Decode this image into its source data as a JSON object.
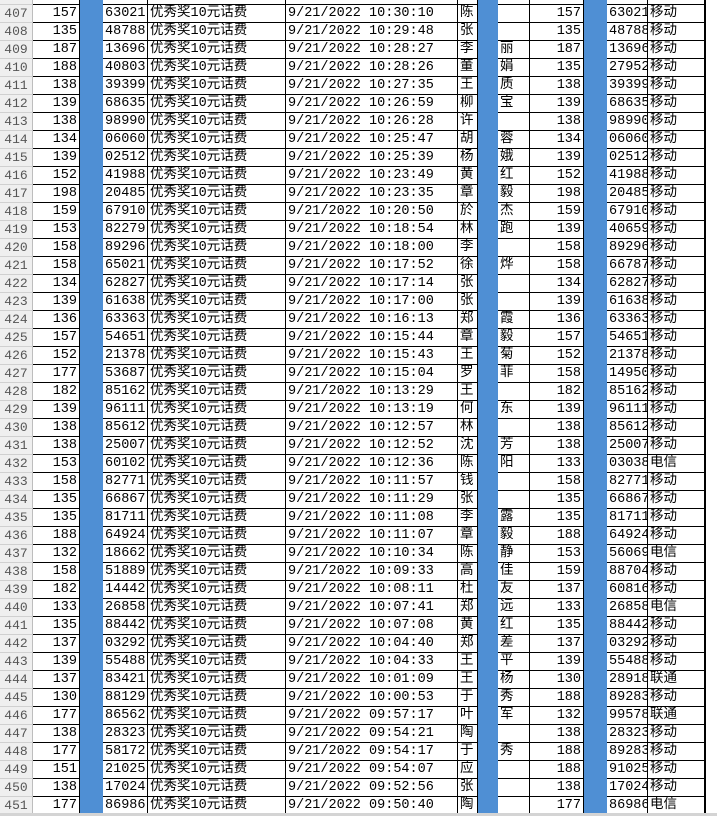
{
  "sheet": {
    "accent_redaction_color": "#4f8fd4",
    "rows": [
      [
        "407",
        "157",
        "63021",
        "优秀奖10元话费",
        "9/21/2022 10:30:10",
        "陈",
        "",
        "157",
        "63021",
        "移动"
      ],
      [
        "408",
        "135",
        "48788",
        "优秀奖10元话费",
        "9/21/2022 10:29:48",
        "张",
        "",
        "135",
        "48788",
        "移动"
      ],
      [
        "409",
        "187",
        "13696",
        "优秀奖10元话费",
        "9/21/2022 10:28:27",
        "李",
        "丽",
        "187",
        "13696",
        "移动"
      ],
      [
        "410",
        "188",
        "40803",
        "优秀奖10元话费",
        "9/21/2022 10:28:26",
        "董",
        "娟",
        "135",
        "27952",
        "移动"
      ],
      [
        "411",
        "138",
        "39399",
        "优秀奖10元话费",
        "9/21/2022 10:27:35",
        "王",
        "质",
        "138",
        "39399",
        "移动"
      ],
      [
        "412",
        "139",
        "68635",
        "优秀奖10元话费",
        "9/21/2022 10:26:59",
        "柳",
        "宝",
        "139",
        "68635",
        "移动"
      ],
      [
        "413",
        "138",
        "98990",
        "优秀奖10元话费",
        "9/21/2022 10:26:28",
        "许",
        "",
        "138",
        "98990",
        "移动"
      ],
      [
        "414",
        "134",
        "06060",
        "优秀奖10元话费",
        "9/21/2022 10:25:47",
        "胡",
        "蓉",
        "134",
        "06060",
        "移动"
      ],
      [
        "415",
        "139",
        "02512",
        "优秀奖10元话费",
        "9/21/2022 10:25:39",
        "杨",
        "娥",
        "139",
        "02512",
        "移动"
      ],
      [
        "416",
        "152",
        "41988",
        "优秀奖10元话费",
        "9/21/2022 10:23:49",
        "黄",
        "红",
        "152",
        "41988",
        "移动"
      ],
      [
        "417",
        "198",
        "20485",
        "优秀奖10元话费",
        "9/21/2022 10:23:35",
        "章",
        "毅",
        "198",
        "20485",
        "移动"
      ],
      [
        "418",
        "159",
        "67910",
        "优秀奖10元话费",
        "9/21/2022 10:20:50",
        "於",
        "杰",
        "159",
        "67910",
        "移动"
      ],
      [
        "419",
        "153",
        "82279",
        "优秀奖10元话费",
        "9/21/2022 10:18:54",
        "林",
        "跑",
        "139",
        "40659",
        "移动"
      ],
      [
        "420",
        "158",
        "89296",
        "优秀奖10元话费",
        "9/21/2022 10:18:00",
        "李",
        "",
        "158",
        "89296",
        "移动"
      ],
      [
        "421",
        "158",
        "65021",
        "优秀奖10元话费",
        "9/21/2022 10:17:52",
        "徐",
        "烨",
        "158",
        "66787",
        "移动"
      ],
      [
        "422",
        "134",
        "62827",
        "优秀奖10元话费",
        "9/21/2022 10:17:14",
        "张",
        "",
        "134",
        "62827",
        "移动"
      ],
      [
        "423",
        "139",
        "61638",
        "优秀奖10元话费",
        "9/21/2022 10:17:00",
        "张",
        "",
        "139",
        "61638",
        "移动"
      ],
      [
        "424",
        "136",
        "63363",
        "优秀奖10元话费",
        "9/21/2022 10:16:13",
        "郑",
        "霞",
        "136",
        "63363",
        "移动"
      ],
      [
        "425",
        "157",
        "54651",
        "优秀奖10元话费",
        "9/21/2022 10:15:44",
        "章",
        "毅",
        "157",
        "54651",
        "移动"
      ],
      [
        "426",
        "152",
        "21378",
        "优秀奖10元话费",
        "9/21/2022 10:15:43",
        "王",
        "菊",
        "152",
        "21378",
        "移动"
      ],
      [
        "427",
        "177",
        "53687",
        "优秀奖10元话费",
        "9/21/2022 10:15:04",
        "罗",
        "菲",
        "158",
        "14950",
        "移动"
      ],
      [
        "428",
        "182",
        "85162",
        "优秀奖10元话费",
        "9/21/2022 10:13:29",
        "王",
        "",
        "182",
        "85162",
        "移动"
      ],
      [
        "429",
        "139",
        "96111",
        "优秀奖10元话费",
        "9/21/2022 10:13:19",
        "何",
        "东",
        "139",
        "96111",
        "移动"
      ],
      [
        "430",
        "138",
        "85612",
        "优秀奖10元话费",
        "9/21/2022 10:12:57",
        "林",
        "",
        "138",
        "85612",
        "移动"
      ],
      [
        "431",
        "138",
        "25007",
        "优秀奖10元话费",
        "9/21/2022 10:12:52",
        "沈",
        "芳",
        "138",
        "25007",
        "移动"
      ],
      [
        "432",
        "153",
        "60102",
        "优秀奖10元话费",
        "9/21/2022 10:12:36",
        "陈",
        "阳",
        "133",
        "03038",
        "电信"
      ],
      [
        "433",
        "158",
        "82771",
        "优秀奖10元话费",
        "9/21/2022 10:11:57",
        "钱",
        "",
        "158",
        "82771",
        "移动"
      ],
      [
        "434",
        "135",
        "66867",
        "优秀奖10元话费",
        "9/21/2022 10:11:29",
        "张",
        "",
        "135",
        "66867",
        "移动"
      ],
      [
        "435",
        "135",
        "81711",
        "优秀奖10元话费",
        "9/21/2022 10:11:08",
        "李",
        "露",
        "135",
        "81711",
        "移动"
      ],
      [
        "436",
        "188",
        "64924",
        "优秀奖10元话费",
        "9/21/2022 10:11:07",
        "章",
        "毅",
        "188",
        "64924",
        "移动"
      ],
      [
        "437",
        "132",
        "18662",
        "优秀奖10元话费",
        "9/21/2022 10:10:34",
        "陈",
        "静",
        "153",
        "56069",
        "电信"
      ],
      [
        "438",
        "158",
        "51889",
        "优秀奖10元话费",
        "9/21/2022 10:09:33",
        "高",
        "佳",
        "159",
        "88704",
        "移动"
      ],
      [
        "439",
        "182",
        "14442",
        "优秀奖10元话费",
        "9/21/2022 10:08:11",
        "杜",
        "友",
        "137",
        "60816",
        "移动"
      ],
      [
        "440",
        "133",
        "26858",
        "优秀奖10元话费",
        "9/21/2022 10:07:41",
        "郑",
        "远",
        "133",
        "26858",
        "电信"
      ],
      [
        "441",
        "135",
        "88442",
        "优秀奖10元话费",
        "9/21/2022 10:07:08",
        "黄",
        "红",
        "135",
        "88442",
        "移动"
      ],
      [
        "442",
        "137",
        "03292",
        "优秀奖10元话费",
        "9/21/2022 10:04:40",
        "郑",
        "差",
        "137",
        "03292",
        "移动"
      ],
      [
        "443",
        "139",
        "55488",
        "优秀奖10元话费",
        "9/21/2022 10:04:33",
        "王",
        "平",
        "139",
        "55488",
        "移动"
      ],
      [
        "444",
        "137",
        "83421",
        "优秀奖10元话费",
        "9/21/2022 10:01:09",
        "王",
        "杨",
        "130",
        "28918",
        "联通"
      ],
      [
        "445",
        "130",
        "88129",
        "优秀奖10元话费",
        "9/21/2022 10:00:53",
        "于",
        "秀",
        "188",
        "89283",
        "移动"
      ],
      [
        "446",
        "177",
        "86562",
        "优秀奖10元话费",
        "9/21/2022 09:57:17",
        "叶",
        "军",
        "132",
        "99578",
        "联通"
      ],
      [
        "447",
        "138",
        "28323",
        "优秀奖10元话费",
        "9/21/2022 09:54:21",
        "陶",
        "",
        "138",
        "28323",
        "移动"
      ],
      [
        "448",
        "177",
        "58172",
        "优秀奖10元话费",
        "9/21/2022 09:54:17",
        "于",
        "秀",
        "188",
        "89283",
        "移动"
      ],
      [
        "449",
        "151",
        "21025",
        "优秀奖10元话费",
        "9/21/2022 09:54:07",
        "应",
        "",
        "188",
        "91025",
        "移动"
      ],
      [
        "450",
        "138",
        "17024",
        "优秀奖10元话费",
        "9/21/2022 09:52:56",
        "张",
        "",
        "138",
        "17024",
        "移动"
      ],
      [
        "451",
        "177",
        "86986",
        "优秀奖10元话费",
        "9/21/2022 09:50:40",
        "陶",
        "",
        "177",
        "86986",
        "电信"
      ]
    ]
  }
}
